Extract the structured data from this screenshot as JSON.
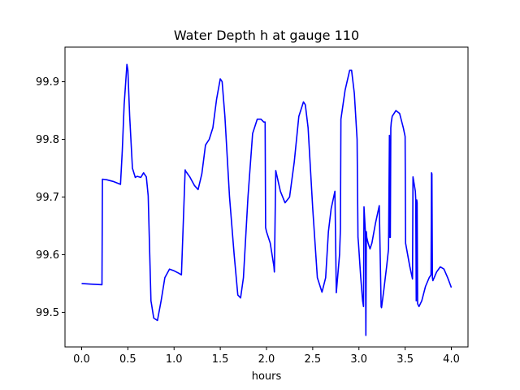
{
  "chart_data": {
    "type": "line",
    "title": "Water Depth h at gauge 110",
    "xlabel": "hours",
    "ylabel": "",
    "xlim": [
      -0.18,
      4.18
    ],
    "ylim": [
      99.44,
      99.96
    ],
    "xticks": [
      0.0,
      0.5,
      1.0,
      1.5,
      2.0,
      2.5,
      3.0,
      3.5,
      4.0
    ],
    "xtick_labels": [
      "0.0",
      "0.5",
      "1.0",
      "1.5",
      "2.0",
      "2.5",
      "3.0",
      "3.5",
      "4.0"
    ],
    "yticks": [
      99.5,
      99.6,
      99.7,
      99.8,
      99.9
    ],
    "ytick_labels": [
      "99.5",
      "99.6",
      "99.7",
      "99.8",
      "99.9"
    ],
    "grid": false,
    "series": [
      {
        "color": "#0000ff",
        "x": [
          0.0,
          0.1,
          0.22,
          0.225,
          0.27,
          0.34,
          0.42,
          0.44,
          0.46,
          0.49,
          0.5,
          0.52,
          0.55,
          0.58,
          0.6,
          0.64,
          0.67,
          0.7,
          0.72,
          0.75,
          0.755,
          0.78,
          0.82,
          0.86,
          0.9,
          0.95,
          1.0,
          1.05,
          1.08,
          1.12,
          1.125,
          1.17,
          1.22,
          1.26,
          1.3,
          1.34,
          1.38,
          1.42,
          1.46,
          1.5,
          1.52,
          1.55,
          1.6,
          1.65,
          1.69,
          1.72,
          1.75,
          1.8,
          1.85,
          1.9,
          1.94,
          1.97,
          1.985,
          1.99,
          2.0,
          2.04,
          2.08,
          2.085,
          2.1,
          2.15,
          2.2,
          2.25,
          2.3,
          2.35,
          2.4,
          2.42,
          2.45,
          2.5,
          2.55,
          2.6,
          2.64,
          2.67,
          2.7,
          2.74,
          2.75,
          2.755,
          2.79,
          2.8,
          2.805,
          2.85,
          2.9,
          2.92,
          2.95,
          2.98,
          2.99,
          2.995,
          3.02,
          3.04,
          3.05,
          3.055,
          3.07,
          3.075,
          3.08,
          3.085,
          3.1,
          3.12,
          3.14,
          3.18,
          3.22,
          3.24,
          3.245,
          3.27,
          3.3,
          3.32,
          3.33,
          3.335,
          3.34,
          3.345,
          3.35,
          3.36,
          3.4,
          3.44,
          3.48,
          3.5,
          3.505,
          3.55,
          3.58,
          3.585,
          3.61,
          3.615,
          3.62,
          3.625,
          3.63,
          3.635,
          3.65,
          3.68,
          3.72,
          3.76,
          3.78,
          3.785,
          3.79,
          3.795,
          3.8,
          3.84,
          3.88,
          3.92,
          3.96,
          4.0
        ],
        "y": [
          99.55,
          99.549,
          99.548,
          99.731,
          99.73,
          99.727,
          99.722,
          99.78,
          99.86,
          99.93,
          99.92,
          99.84,
          99.75,
          99.734,
          99.736,
          99.734,
          99.742,
          99.735,
          99.702,
          99.52,
          99.515,
          99.49,
          99.486,
          99.52,
          99.56,
          99.575,
          99.572,
          99.568,
          99.565,
          99.747,
          99.745,
          99.735,
          99.72,
          99.713,
          99.74,
          99.79,
          99.8,
          99.82,
          99.87,
          99.905,
          99.9,
          99.84,
          99.7,
          99.6,
          99.53,
          99.525,
          99.56,
          99.7,
          99.81,
          99.835,
          99.835,
          99.83,
          99.83,
          99.647,
          99.64,
          99.62,
          99.58,
          99.57,
          99.746,
          99.71,
          99.69,
          99.7,
          99.76,
          99.84,
          99.865,
          99.86,
          99.82,
          99.68,
          99.56,
          99.535,
          99.56,
          99.64,
          99.68,
          99.71,
          99.6,
          99.534,
          99.6,
          99.645,
          99.835,
          99.885,
          99.92,
          99.92,
          99.88,
          99.8,
          99.63,
          99.62,
          99.56,
          99.52,
          99.51,
          99.683,
          99.64,
          99.46,
          99.64,
          99.63,
          99.62,
          99.61,
          99.62,
          99.655,
          99.685,
          99.51,
          99.508,
          99.54,
          99.58,
          99.61,
          99.807,
          99.63,
          99.63,
          99.82,
          99.83,
          99.84,
          99.85,
          99.845,
          99.82,
          99.805,
          99.62,
          99.58,
          99.558,
          99.735,
          99.71,
          99.695,
          99.52,
          99.695,
          99.69,
          99.515,
          99.51,
          99.52,
          99.545,
          99.56,
          99.565,
          99.742,
          99.74,
          99.56,
          99.555,
          99.57,
          99.579,
          99.575,
          99.56,
          99.543
        ]
      }
    ]
  }
}
